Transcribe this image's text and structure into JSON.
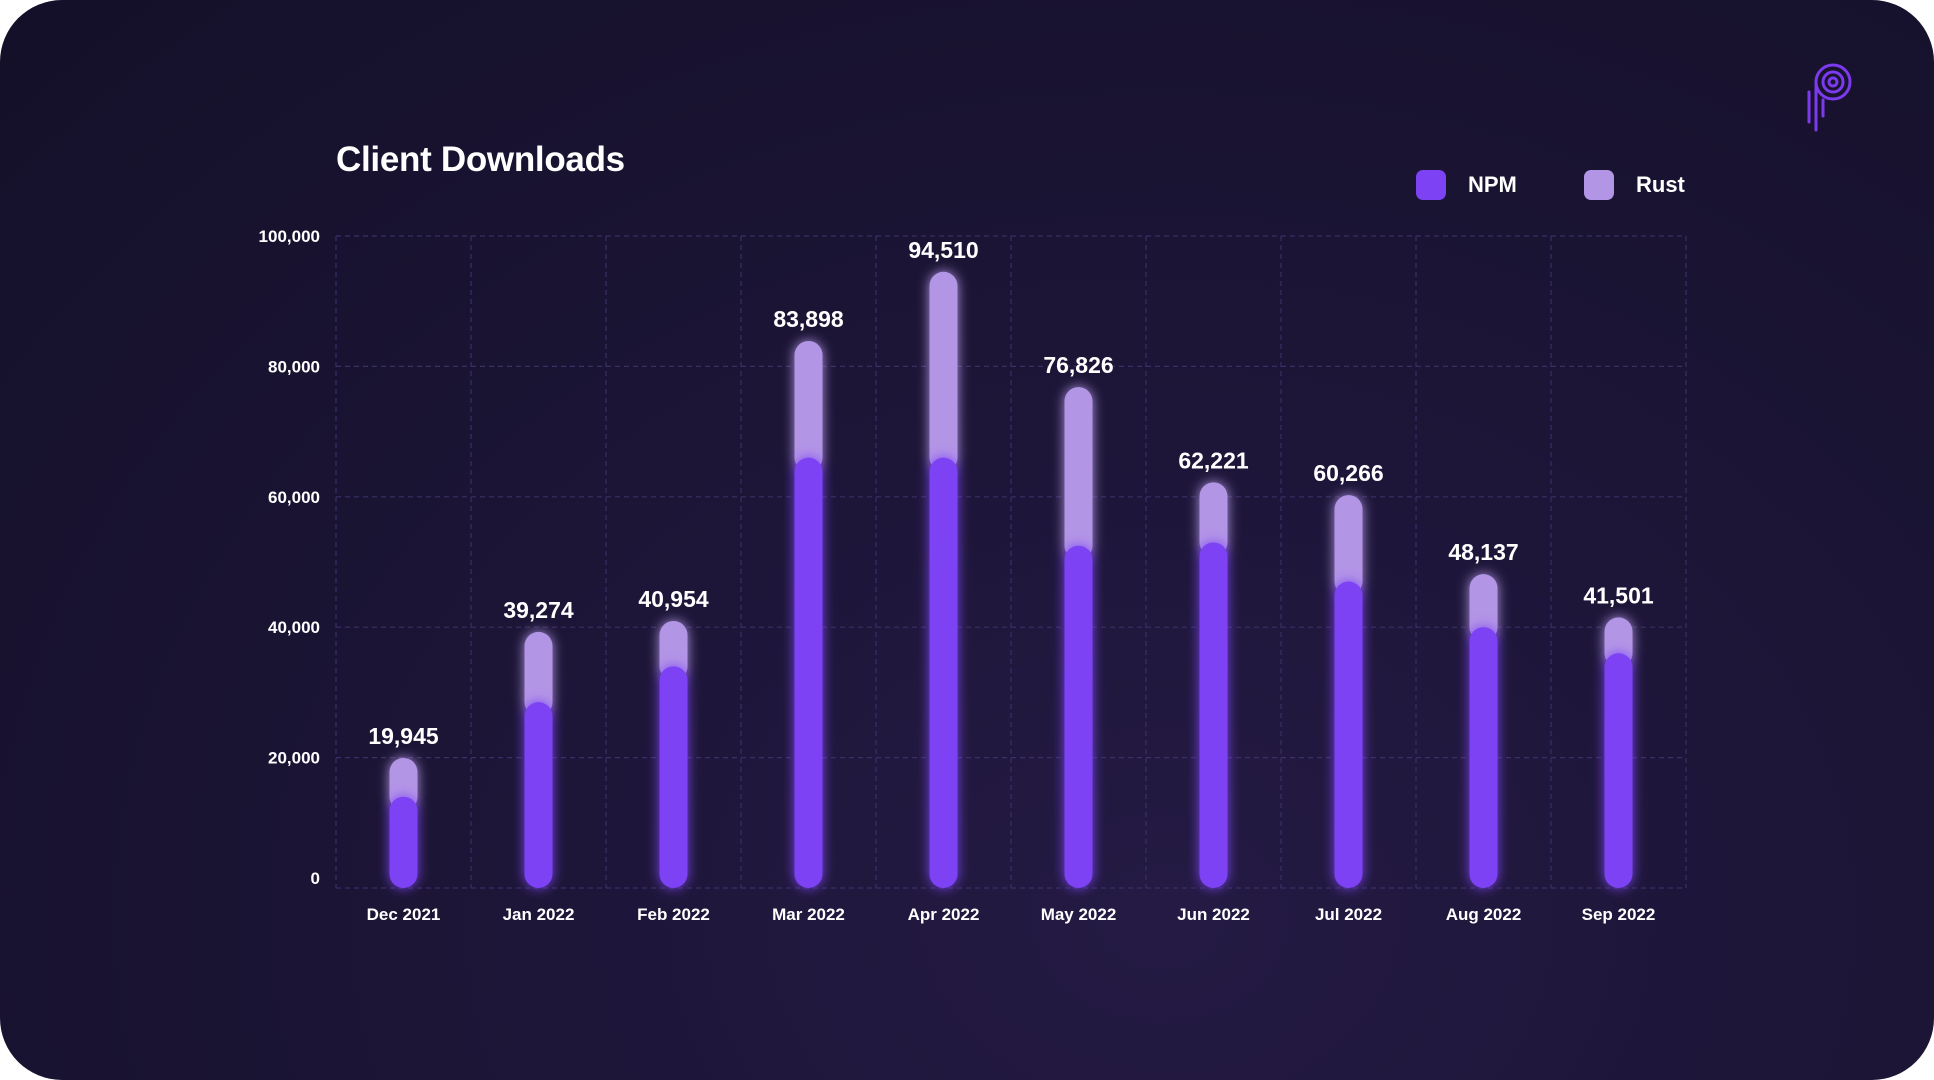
{
  "colors": {
    "npm": "#7c3aed",
    "npm_fill": "#7d42f4",
    "rust": "#b395e6",
    "grid": "#3a2f66",
    "text": "#ffffff"
  },
  "legend": {
    "npm_label": "NPM",
    "rust_label": "Rust"
  },
  "logo_icon": "brand-logo-icon",
  "chart_data": {
    "type": "bar",
    "stacked": true,
    "title": "Client Downloads",
    "xlabel": "",
    "ylabel": "",
    "ylim": [
      0,
      100000
    ],
    "yticks": [
      "0",
      "20,000",
      "40,000",
      "60,000",
      "80,000",
      "100,000"
    ],
    "grid": true,
    "legend_position": "top-right",
    "categories": [
      "Dec 2021",
      "Jan 2022",
      "Feb 2022",
      "Mar 2022",
      "Apr 2022",
      "May 2022",
      "Jun 2022",
      "Jul 2022",
      "Aug 2022",
      "Sep 2022"
    ],
    "series": [
      {
        "name": "NPM",
        "values": [
          14000,
          28500,
          34000,
          66000,
          66000,
          52500,
          53000,
          47000,
          40000,
          36000
        ]
      },
      {
        "name": "Rust",
        "values": [
          5945,
          10774,
          6954,
          17898,
          28510,
          24326,
          9221,
          13266,
          8137,
          5501
        ]
      }
    ],
    "totals": [
      19945,
      39274,
      40954,
      83898,
      94510,
      76826,
      62221,
      60266,
      48137,
      41501
    ],
    "total_labels": [
      "19,945",
      "39,274",
      "40,954",
      "83,898",
      "94,510",
      "76,826",
      "62,221",
      "60,266",
      "48,137",
      "41,501"
    ]
  }
}
